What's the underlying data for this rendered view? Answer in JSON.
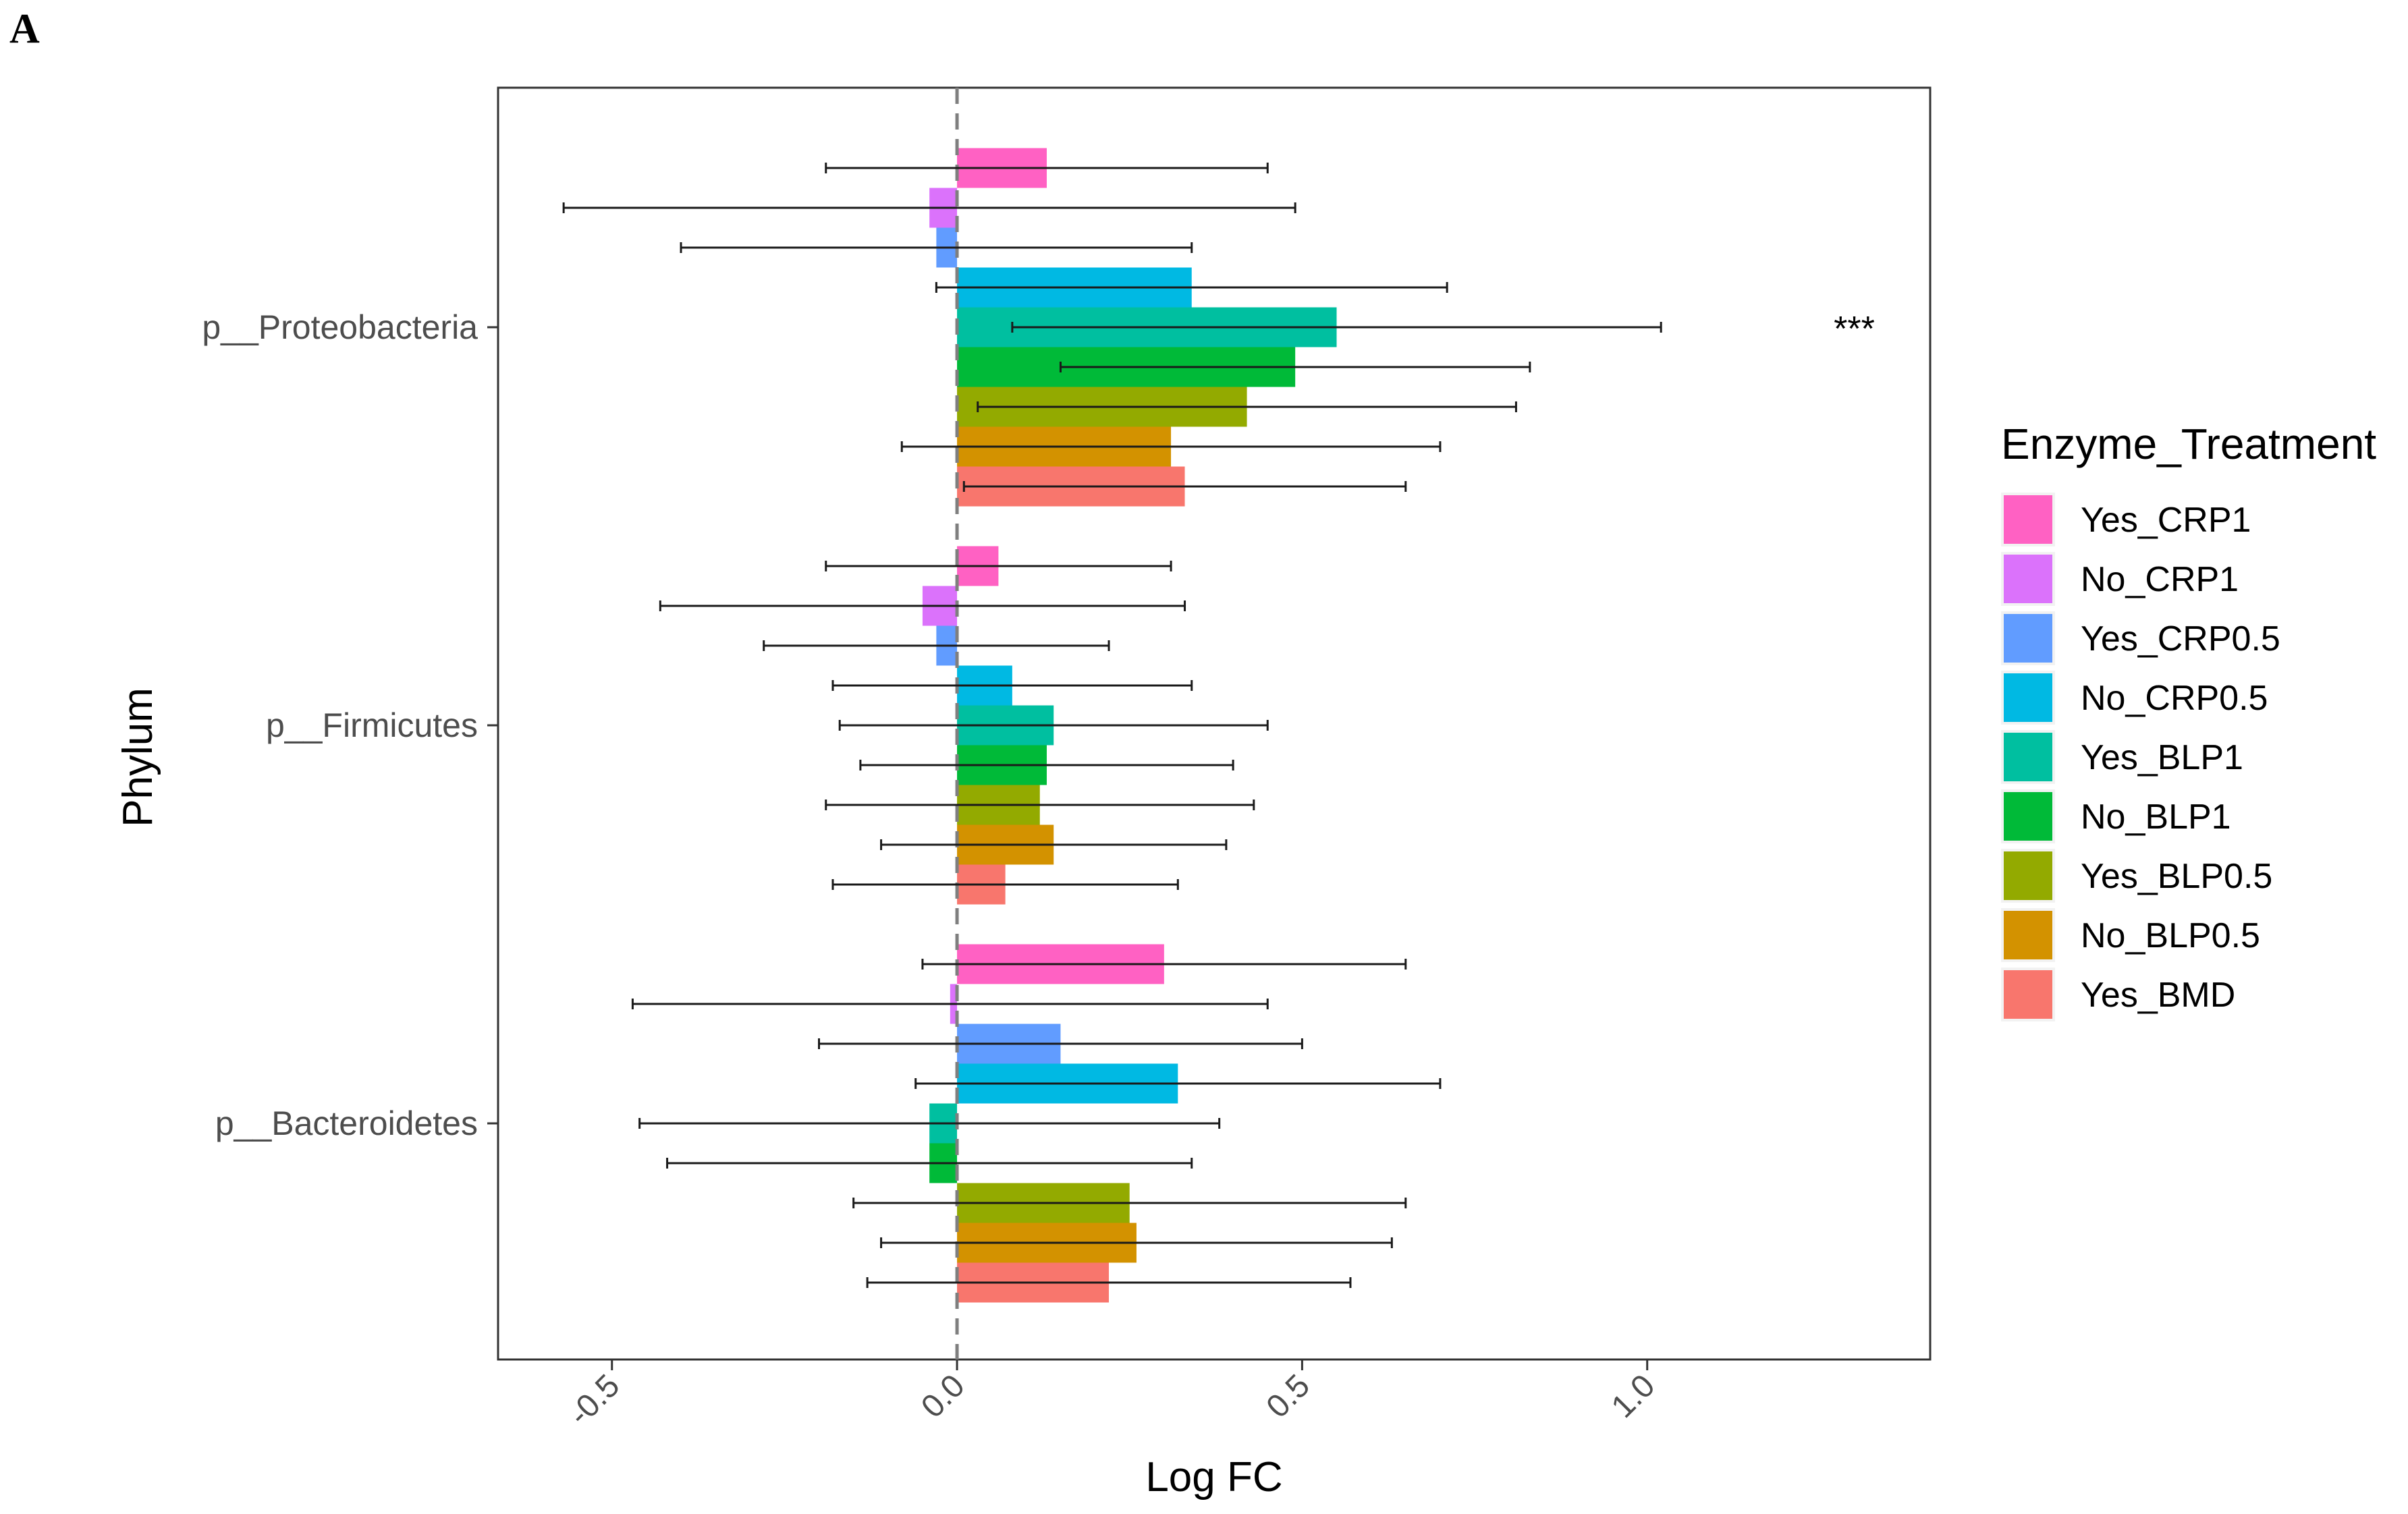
{
  "panel_label": "A",
  "chart_data": {
    "type": "bar",
    "orientation": "horizontal",
    "xlabel": "Log FC",
    "ylabel": "Phylum",
    "xlim": [
      -0.665,
      1.41
    ],
    "xticks": [
      -0.5,
      0.0,
      0.5,
      1.0
    ],
    "xtick_labels": [
      "-0.5",
      "0.0",
      "0.5",
      "1.0"
    ],
    "reference_line": 0.0,
    "categories": [
      "p__Proteobacteria",
      "p__Firmicutes",
      "p__Bacteroidetes"
    ],
    "legend": {
      "title": "Enzyme_Treatment",
      "position": "right"
    },
    "series": [
      {
        "name": "Yes_CRP1",
        "color": "#FF61C3",
        "values": [
          0.13,
          0.06,
          0.3
        ],
        "ci_low": [
          -0.19,
          -0.19,
          -0.05
        ],
        "ci_high": [
          0.45,
          0.31,
          0.65
        ]
      },
      {
        "name": "No_CRP1",
        "color": "#DB72FB",
        "values": [
          -0.04,
          -0.05,
          -0.01
        ],
        "ci_low": [
          -0.57,
          -0.43,
          -0.47
        ],
        "ci_high": [
          0.49,
          0.33,
          0.45
        ]
      },
      {
        "name": "Yes_CRP0.5",
        "color": "#619CFF",
        "values": [
          -0.03,
          -0.03,
          0.15
        ],
        "ci_low": [
          -0.4,
          -0.28,
          -0.2
        ],
        "ci_high": [
          0.34,
          0.22,
          0.5
        ]
      },
      {
        "name": "No_CRP0.5",
        "color": "#00B9E3",
        "values": [
          0.34,
          0.08,
          0.32
        ],
        "ci_low": [
          -0.03,
          -0.18,
          -0.06
        ],
        "ci_high": [
          0.71,
          0.34,
          0.7
        ]
      },
      {
        "name": "Yes_BLP1",
        "color": "#00BFA0",
        "values": [
          0.55,
          0.14,
          -0.04
        ],
        "ci_low": [
          0.08,
          -0.17,
          -0.46
        ],
        "ci_high": [
          1.02,
          0.45,
          0.38
        ]
      },
      {
        "name": "No_BLP1",
        "color": "#00BA38",
        "values": [
          0.49,
          0.13,
          -0.04
        ],
        "ci_low": [
          0.15,
          -0.14,
          -0.42
        ],
        "ci_high": [
          0.83,
          0.4,
          0.34
        ]
      },
      {
        "name": "Yes_BLP0.5",
        "color": "#93AA00",
        "values": [
          0.42,
          0.12,
          0.25
        ],
        "ci_low": [
          0.03,
          -0.19,
          -0.15
        ],
        "ci_high": [
          0.81,
          0.43,
          0.65
        ]
      },
      {
        "name": "No_BLP0.5",
        "color": "#D39200",
        "values": [
          0.31,
          0.14,
          0.26
        ],
        "ci_low": [
          -0.08,
          -0.11,
          -0.11
        ],
        "ci_high": [
          0.7,
          0.39,
          0.63
        ]
      },
      {
        "name": "Yes_BMD",
        "color": "#F8766D",
        "values": [
          0.33,
          0.07,
          0.22
        ],
        "ci_low": [
          0.01,
          -0.18,
          -0.13
        ],
        "ci_high": [
          0.65,
          0.32,
          0.57
        ]
      }
    ],
    "annotations": [
      {
        "text": "***",
        "category": "p__Proteobacteria",
        "x": 1.3
      }
    ]
  }
}
